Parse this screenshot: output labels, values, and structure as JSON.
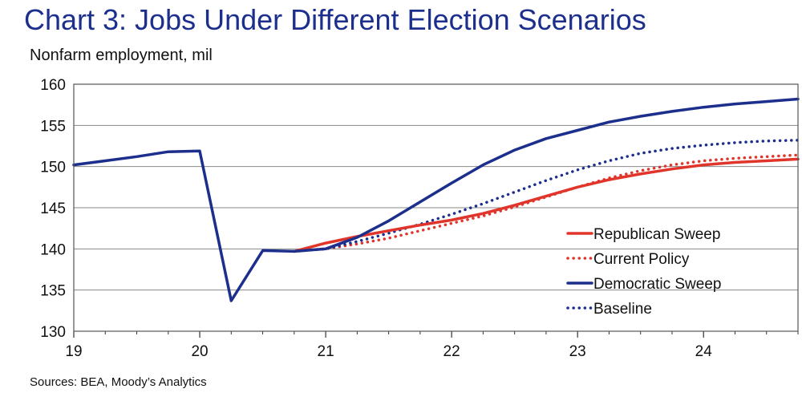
{
  "chart_data": {
    "type": "line",
    "title": "Chart 3: Jobs Under Different Election Scenarios",
    "subtitle": "Nonfarm employment, mil",
    "source": "Sources: BEA, Moody’s Analytics",
    "xlabel": "",
    "ylabel": "",
    "xlim": [
      2019.0,
      2024.75
    ],
    "ylim": [
      130,
      160
    ],
    "x_ticks": [
      {
        "value": 2019,
        "label": "19"
      },
      {
        "value": 2020,
        "label": "20"
      },
      {
        "value": 2021,
        "label": "21"
      },
      {
        "value": 2022,
        "label": "22"
      },
      {
        "value": 2023,
        "label": "23"
      },
      {
        "value": 2024,
        "label": "24"
      }
    ],
    "y_ticks": [
      130,
      135,
      140,
      145,
      150,
      155,
      160
    ],
    "grid": "horizontal",
    "legend_position": "lower-right",
    "series": [
      {
        "name": "Republican Sweep",
        "color": "#e0352b",
        "style": "solid",
        "x": [
          2020.75,
          2021.0,
          2021.25,
          2021.5,
          2021.75,
          2022.0,
          2022.25,
          2022.5,
          2022.75,
          2023.0,
          2023.25,
          2023.5,
          2023.75,
          2024.0,
          2024.25,
          2024.5,
          2024.75
        ],
        "y": [
          139.7,
          140.7,
          141.5,
          142.2,
          142.9,
          143.5,
          144.3,
          145.3,
          146.4,
          147.5,
          148.4,
          149.1,
          149.7,
          150.2,
          150.5,
          150.7,
          150.9
        ]
      },
      {
        "name": "Current Policy",
        "color": "#e0352b",
        "style": "dotted",
        "x": [
          2020.75,
          2021.0,
          2021.25,
          2021.5,
          2021.75,
          2022.0,
          2022.25,
          2022.5,
          2022.75,
          2023.0,
          2023.25,
          2023.5,
          2023.75,
          2024.0,
          2024.25,
          2024.5,
          2024.75
        ],
        "y": [
          139.7,
          140.0,
          140.6,
          141.3,
          142.2,
          143.1,
          144.0,
          145.1,
          146.3,
          147.5,
          148.6,
          149.5,
          150.2,
          150.7,
          151.0,
          151.2,
          151.4
        ]
      },
      {
        "name": "Democratic Sweep",
        "color": "#1c2f8c",
        "style": "solid",
        "x": [
          2019.0,
          2019.25,
          2019.5,
          2019.75,
          2020.0,
          2020.25,
          2020.5,
          2020.75,
          2021.0,
          2021.25,
          2021.5,
          2021.75,
          2022.0,
          2022.25,
          2022.5,
          2022.75,
          2023.0,
          2023.25,
          2023.5,
          2023.75,
          2024.0,
          2024.25,
          2024.5,
          2024.75
        ],
        "y": [
          150.2,
          150.7,
          151.2,
          151.8,
          151.9,
          133.7,
          139.8,
          139.7,
          140.0,
          141.4,
          143.4,
          145.7,
          148.0,
          150.2,
          152.0,
          153.4,
          154.4,
          155.4,
          156.1,
          156.7,
          157.2,
          157.6,
          157.9,
          158.2
        ]
      },
      {
        "name": "Baseline",
        "color": "#1c2f8c",
        "style": "dotted",
        "x": [
          2020.75,
          2021.0,
          2021.25,
          2021.5,
          2021.75,
          2022.0,
          2022.25,
          2022.5,
          2022.75,
          2023.0,
          2023.25,
          2023.5,
          2023.75,
          2024.0,
          2024.25,
          2024.5,
          2024.75
        ],
        "y": [
          139.7,
          140.0,
          140.9,
          141.9,
          143.0,
          144.2,
          145.5,
          146.9,
          148.3,
          149.6,
          150.7,
          151.6,
          152.2,
          152.6,
          152.9,
          153.1,
          153.2
        ]
      }
    ]
  }
}
